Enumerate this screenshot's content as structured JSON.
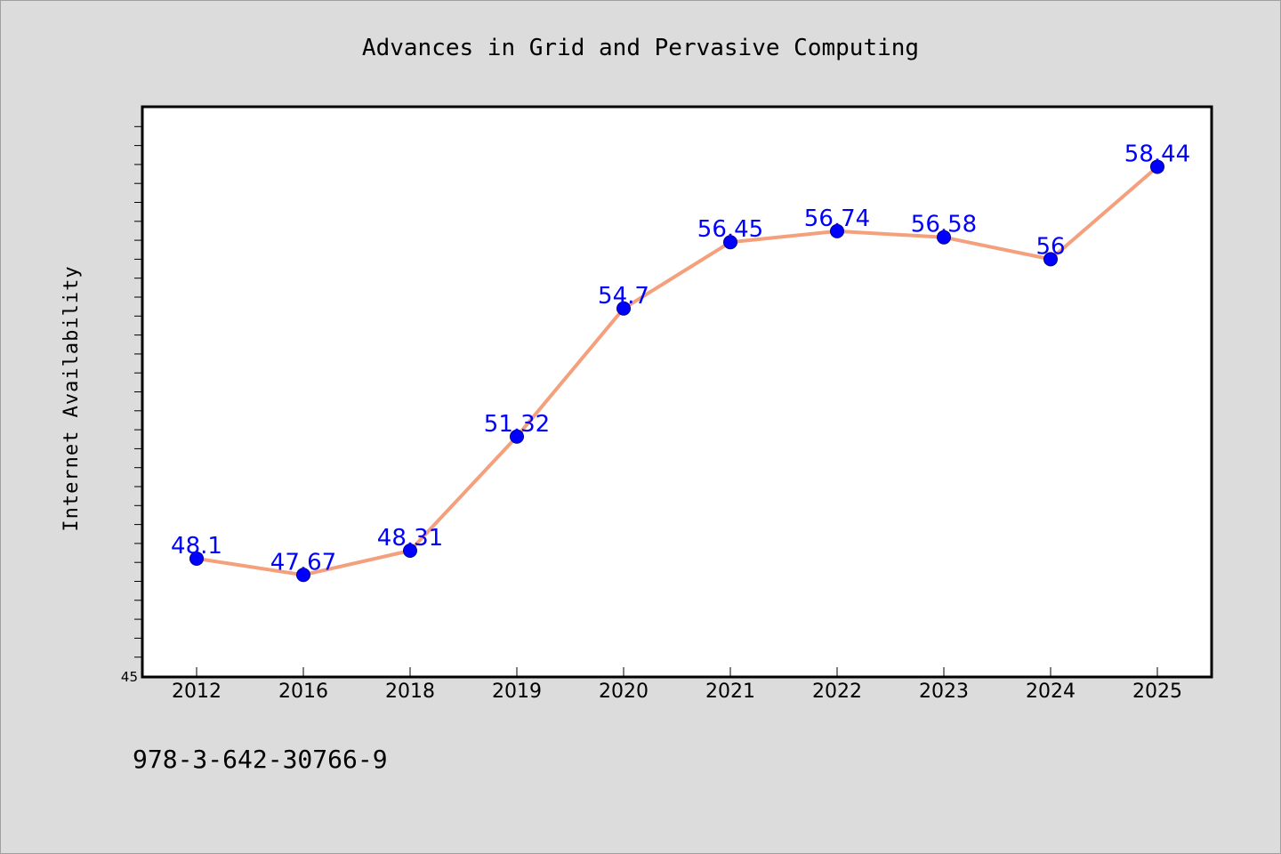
{
  "chart_data": {
    "type": "line",
    "title": "Advances in Grid and Pervasive Computing",
    "xlabel": "",
    "ylabel": "Internet Availability",
    "categories": [
      "2012",
      "2016",
      "2018",
      "2019",
      "2020",
      "2021",
      "2022",
      "2023",
      "2024",
      "2025"
    ],
    "series": [
      {
        "values": [
          48.1,
          47.67,
          48.31,
          51.32,
          54.7,
          56.45,
          56.74,
          56.58,
          56,
          58.44
        ],
        "data_labels": [
          "48.1",
          "47.67",
          "48.31",
          "51.32",
          "54.7",
          "56.45",
          "56.74",
          "56.58",
          "56",
          "58.44"
        ]
      }
    ],
    "y_tick_labels": [
      "45"
    ],
    "ylim": [
      45,
      60
    ],
    "grid": false,
    "legend": "none",
    "colors": {
      "line": "#f4a07c",
      "marker": "#0000ff",
      "data_label": "#0000ff",
      "background": "#dcdcdc",
      "plot_background": "#ffffff"
    }
  },
  "footer_text": "978-3-642-30766-9"
}
